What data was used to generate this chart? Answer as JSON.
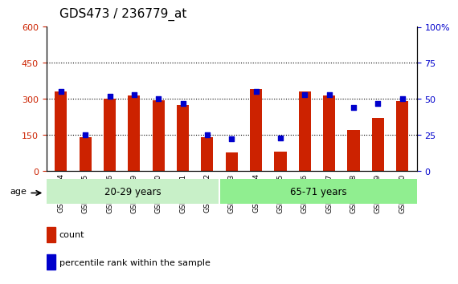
{
  "title": "GDS473 / 236779_at",
  "samples": [
    "GSM10354",
    "GSM10355",
    "GSM10356",
    "GSM10359",
    "GSM10360",
    "GSM10361",
    "GSM10362",
    "GSM10363",
    "GSM10364",
    "GSM10365",
    "GSM10366",
    "GSM10367",
    "GSM10368",
    "GSM10369",
    "GSM10370"
  ],
  "counts": [
    330,
    140,
    300,
    315,
    295,
    275,
    140,
    75,
    340,
    80,
    330,
    315,
    170,
    220,
    290
  ],
  "percentiles": [
    55,
    25,
    52,
    53,
    50,
    47,
    25,
    22,
    55,
    23,
    53,
    53,
    44,
    47,
    50
  ],
  "groups": [
    {
      "label": "20-29 years",
      "start": 0,
      "end": 7,
      "color": "#90ee90"
    },
    {
      "label": "65-71 years",
      "start": 7,
      "end": 15,
      "color": "#00cc00"
    }
  ],
  "group_bg_left": "#c8f0c8",
  "group_bg_right": "#90ee90",
  "bar_color": "#cc2200",
  "dot_color": "#0000cc",
  "ylim_left": [
    0,
    600
  ],
  "ylim_right": [
    0,
    100
  ],
  "yticks_left": [
    0,
    150,
    300,
    450,
    600
  ],
  "yticks_right": [
    0,
    25,
    50,
    75,
    100
  ],
  "ylabel_left_color": "#cc2200",
  "ylabel_right_color": "#0000cc",
  "grid_color": "#000000",
  "age_label": "age",
  "legend_count": "count",
  "legend_pct": "percentile rank within the sample"
}
